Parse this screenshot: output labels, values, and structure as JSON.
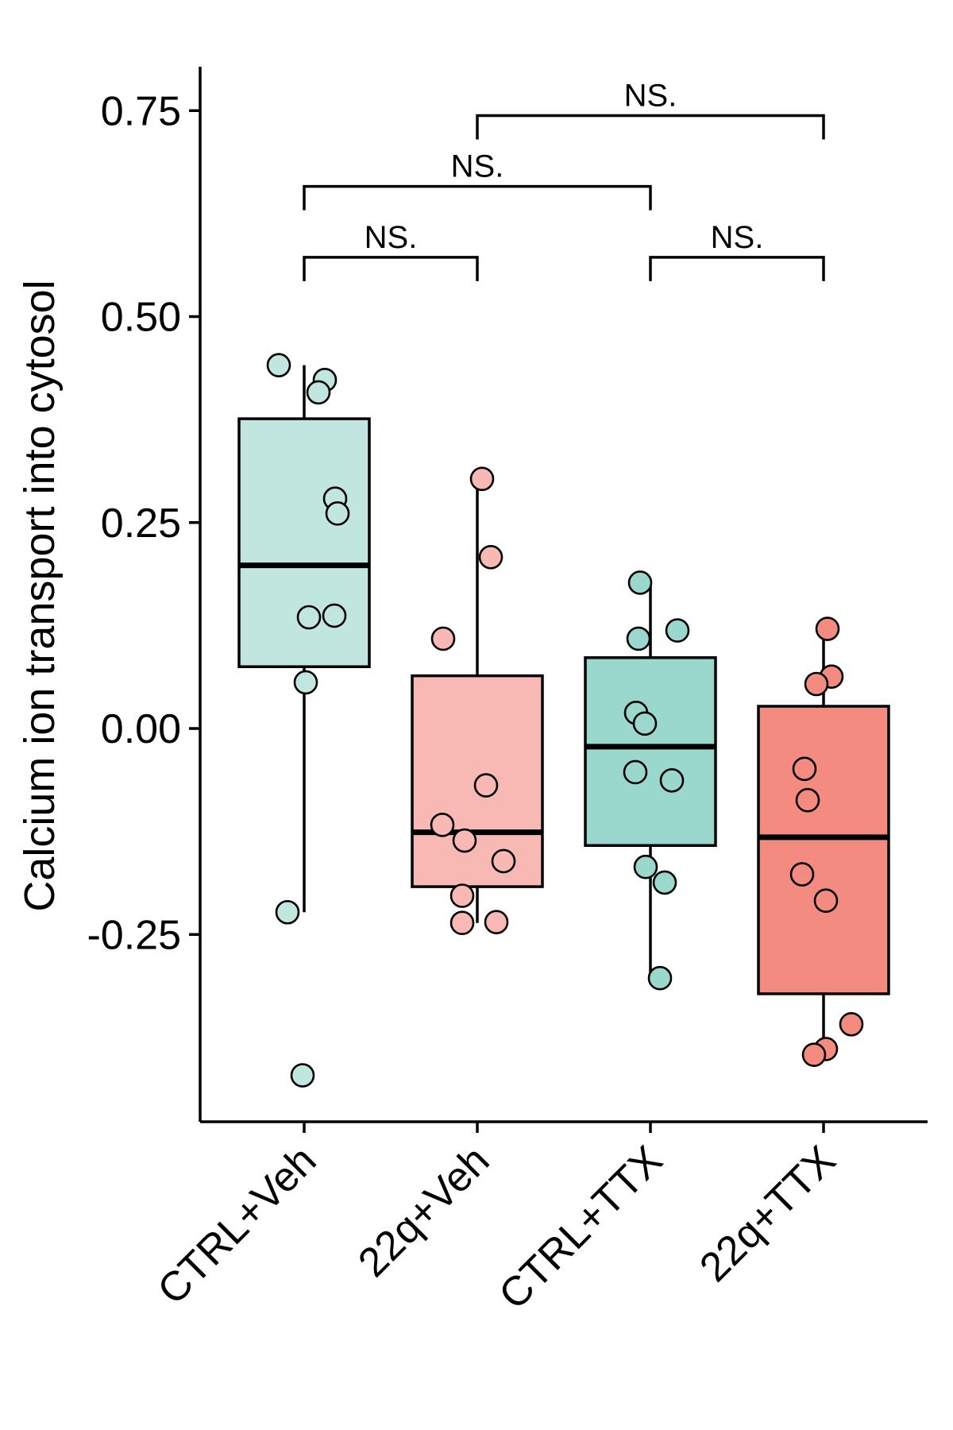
{
  "chart_data": {
    "type": "box",
    "ylabel": "Calcium ion transport into cytosol",
    "xlabel": "",
    "ylim": [
      -0.48,
      0.8
    ],
    "yticks": [
      -0.25,
      0.0,
      0.25,
      0.5,
      0.75
    ],
    "ytick_labels": [
      "-0.25",
      "0.00",
      "0.25",
      "0.50",
      "0.75"
    ],
    "grid": false,
    "legend": "none",
    "groups": [
      {
        "label": "CTRL+Veh",
        "color": "#c1e6df",
        "box": {
          "q1": 0.075,
          "median": 0.198,
          "q3": 0.376,
          "whisker_low": -0.223,
          "whisker_high": 0.441
        },
        "points": [
          0.441,
          0.423,
          0.408,
          0.279,
          0.261,
          0.137,
          0.135,
          0.056,
          -0.223,
          -0.421
        ]
      },
      {
        "label": "22q+Veh",
        "color": "#f8b9b4",
        "box": {
          "q1": -0.192,
          "median": -0.126,
          "q3": 0.064,
          "whisker_low": -0.236,
          "whisker_high": 0.303
        },
        "points": [
          0.303,
          0.208,
          0.109,
          -0.069,
          -0.117,
          -0.136,
          -0.161,
          -0.203,
          -0.236,
          -0.235
        ]
      },
      {
        "label": "CTRL+TTX",
        "color": "#9ad8cd",
        "box": {
          "q1": -0.142,
          "median": -0.022,
          "q3": 0.086,
          "whisker_low": -0.303,
          "whisker_high": 0.177
        },
        "points": [
          0.177,
          0.119,
          0.109,
          0.019,
          0.006,
          -0.053,
          -0.063,
          -0.168,
          -0.187,
          -0.303
        ]
      },
      {
        "label": "22q+TTX",
        "color": "#f38b80",
        "box": {
          "q1": -0.322,
          "median": -0.132,
          "q3": 0.027,
          "whisker_low": -0.392,
          "whisker_high": 0.121
        },
        "points": [
          0.121,
          0.063,
          0.054,
          -0.049,
          -0.087,
          -0.177,
          -0.209,
          -0.359,
          -0.389,
          -0.396
        ]
      }
    ],
    "comparisons": [
      {
        "from": "CTRL+Veh",
        "to": "22q+Veh",
        "label": "NS.",
        "y": 0.572
      },
      {
        "from": "CTRL+Veh",
        "to": "CTRL+TTX",
        "label": "NS.",
        "y": 0.658
      },
      {
        "from": "22q+Veh",
        "to": "22q+TTX",
        "label": "NS.",
        "y": 0.744
      },
      {
        "from": "CTRL+TTX",
        "to": "22q+TTX",
        "label": "NS.",
        "y": 0.572
      }
    ]
  }
}
